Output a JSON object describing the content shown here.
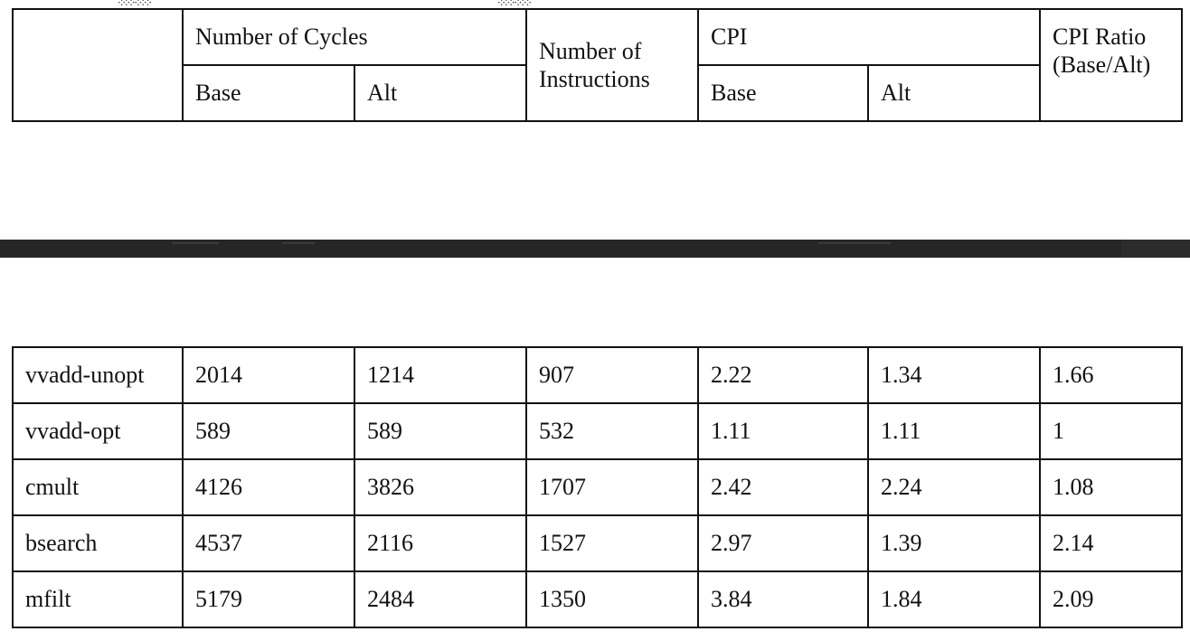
{
  "header_table": {
    "row1": {
      "cycles_group": "Number of Cycles",
      "instructions": "Number of Instructions",
      "cpi_group": "CPI",
      "cpi_ratio": "CPI Ratio (Base/Alt)"
    },
    "row2": {
      "cycles_base": "Base",
      "cycles_alt": "Alt",
      "cpi_base": "Base",
      "cpi_alt": "Alt"
    }
  },
  "data_table": {
    "rows": [
      {
        "program": "vvadd-unopt",
        "cycles_base": "2014",
        "cycles_alt": "1214",
        "instructions": "907",
        "cpi_base": "2.22",
        "cpi_alt": "1.34",
        "cpi_ratio": "1.66"
      },
      {
        "program": "vvadd-opt",
        "cycles_base": "589",
        "cycles_alt": "589",
        "instructions": "532",
        "cpi_base": "1.11",
        "cpi_alt": "1.11",
        "cpi_ratio": "1"
      },
      {
        "program": "cmult",
        "cycles_base": "4126",
        "cycles_alt": "3826",
        "instructions": "1707",
        "cpi_base": "2.42",
        "cpi_alt": "2.24",
        "cpi_ratio": "1.08"
      },
      {
        "program": "bsearch",
        "cycles_base": "4537",
        "cycles_alt": "2116",
        "instructions": "1527",
        "cpi_base": "2.97",
        "cpi_alt": "1.39",
        "cpi_ratio": "2.14"
      },
      {
        "program": "mfilt",
        "cycles_base": "5179",
        "cycles_alt": "2484",
        "instructions": "1350",
        "cpi_base": "3.84",
        "cpi_alt": "1.84",
        "cpi_ratio": "2.09"
      }
    ]
  }
}
